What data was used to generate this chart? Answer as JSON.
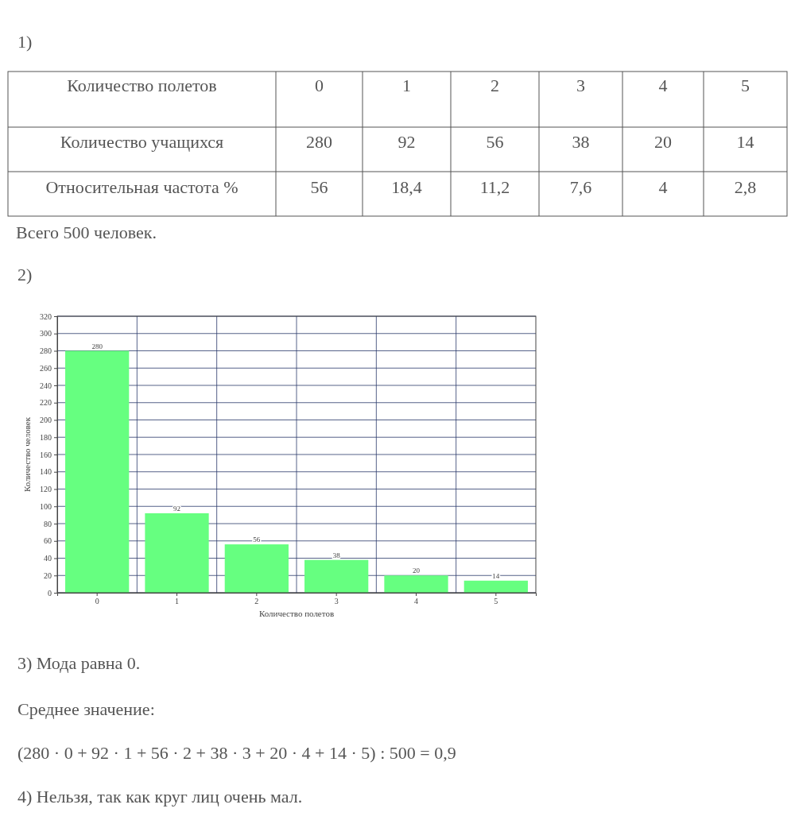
{
  "chart_data": {
    "type": "bar",
    "xlabel": "Количество полетов",
    "ylabel": "Количество человек",
    "categories": [
      "0",
      "1",
      "2",
      "3",
      "4",
      "5"
    ],
    "values": [
      280,
      92,
      56,
      38,
      20,
      14
    ],
    "color": "#66ff80",
    "ylim": [
      0,
      320
    ],
    "yticks": [
      0,
      20,
      40,
      60,
      80,
      100,
      120,
      140,
      160,
      180,
      200,
      220,
      240,
      260,
      280,
      300,
      320
    ],
    "grid": true,
    "data_labels": true,
    "annotations": [
      "1)",
      "Количество полетов",
      "0",
      "1",
      "2",
      "3",
      "4",
      "5",
      "Количество учащихся",
      "280",
      "92",
      "56",
      "38",
      "20",
      "14",
      "Относительная частота %",
      "56",
      "18,4",
      "11,2",
      "7,6",
      "4",
      "2,8",
      "Всего 500 человек.",
      "2)",
      "3) Мода равна 0.",
      "Среднее значение:",
      "(280 · 0 + 92 · 1 + 56 · 2 + 38 · 3 + 20 · 4 + 14 · 5) : 500 = 0,9",
      "4) Нельзя, так как круг лиц очень мал."
    ]
  }
}
